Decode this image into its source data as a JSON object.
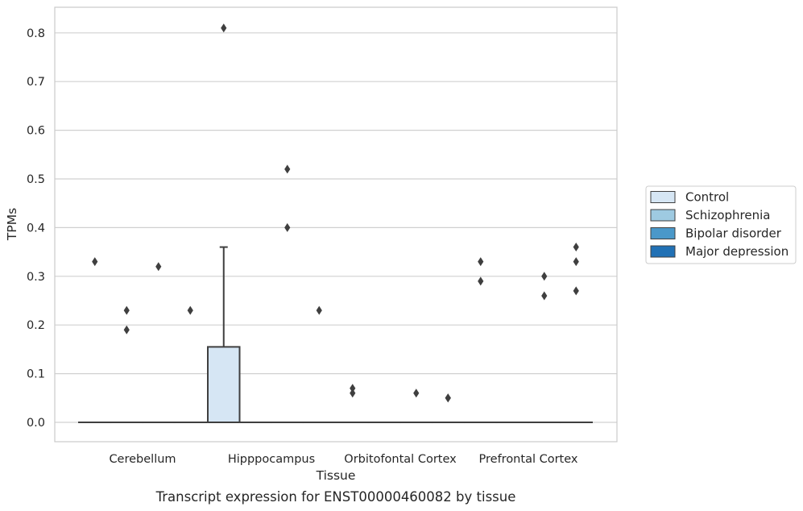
{
  "chart_data": {
    "type": "box",
    "title": "",
    "caption": "Transcript expression for ENST00000460082 by tissue",
    "xlabel": "Tissue",
    "ylabel": "TPMs",
    "ylim": [
      -0.04,
      0.85
    ],
    "yticks": [
      "0.0",
      "0.1",
      "0.2",
      "0.3",
      "0.4",
      "0.5",
      "0.6",
      "0.7",
      "0.8"
    ],
    "grid": "horizontal",
    "legend_position": "right",
    "categories": [
      "Cerebellum",
      "Hipppocampus",
      "Orbitofontal Cortex",
      "Prefrontal Cortex"
    ],
    "series": [
      {
        "name": "Control",
        "color": "#d6e6f4",
        "boxes": [
          {
            "q1": 0,
            "median": 0,
            "q3": 0,
            "whisker_low": 0,
            "whisker_high": 0,
            "outliers": [
              0.33
            ]
          },
          {
            "q1": 0,
            "median": 0,
            "q3": 0.155,
            "whisker_low": 0,
            "whisker_high": 0.36,
            "outliers": [
              0.81
            ]
          },
          {
            "q1": 0,
            "median": 0,
            "q3": 0,
            "whisker_low": 0,
            "whisker_high": 0,
            "outliers": [
              0.07,
              0.06
            ]
          },
          {
            "q1": 0,
            "median": 0,
            "q3": 0,
            "whisker_low": 0,
            "whisker_high": 0,
            "outliers": [
              0.33,
              0.29
            ]
          }
        ]
      },
      {
        "name": "Schizophrenia",
        "color": "#9ecae1",
        "boxes": [
          {
            "q1": 0,
            "median": 0,
            "q3": 0,
            "whisker_low": 0,
            "whisker_high": 0,
            "outliers": [
              0.23,
              0.19
            ]
          },
          {
            "q1": 0,
            "median": 0,
            "q3": 0,
            "whisker_low": 0,
            "whisker_high": 0,
            "outliers": []
          },
          {
            "q1": 0,
            "median": 0,
            "q3": 0,
            "whisker_low": 0,
            "whisker_high": 0,
            "outliers": []
          },
          {
            "q1": 0,
            "median": 0,
            "q3": 0,
            "whisker_low": 0,
            "whisker_high": 0,
            "outliers": []
          }
        ]
      },
      {
        "name": "Bipolar disorder",
        "color": "#4a98c9",
        "boxes": [
          {
            "q1": 0,
            "median": 0,
            "q3": 0,
            "whisker_low": 0,
            "whisker_high": 0,
            "outliers": [
              0.32
            ]
          },
          {
            "q1": 0,
            "median": 0,
            "q3": 0,
            "whisker_low": 0,
            "whisker_high": 0,
            "outliers": [
              0.52,
              0.4
            ]
          },
          {
            "q1": 0,
            "median": 0,
            "q3": 0,
            "whisker_low": 0,
            "whisker_high": 0,
            "outliers": [
              0.06
            ]
          },
          {
            "q1": 0,
            "median": 0,
            "q3": 0,
            "whisker_low": 0,
            "whisker_high": 0,
            "outliers": [
              0.3,
              0.26
            ]
          }
        ]
      },
      {
        "name": "Major depression",
        "color": "#2171b5",
        "boxes": [
          {
            "q1": 0,
            "median": 0,
            "q3": 0,
            "whisker_low": 0,
            "whisker_high": 0,
            "outliers": [
              0.23
            ]
          },
          {
            "q1": 0,
            "median": 0,
            "q3": 0,
            "whisker_low": 0,
            "whisker_high": 0,
            "outliers": [
              0.23
            ]
          },
          {
            "q1": 0,
            "median": 0,
            "q3": 0,
            "whisker_low": 0,
            "whisker_high": 0,
            "outliers": [
              0.05,
              0.05
            ]
          },
          {
            "q1": 0,
            "median": 0,
            "q3": 0,
            "whisker_low": 0,
            "whisker_high": 0,
            "outliers": [
              0.33,
              0.36,
              0.27
            ]
          }
        ]
      }
    ]
  }
}
